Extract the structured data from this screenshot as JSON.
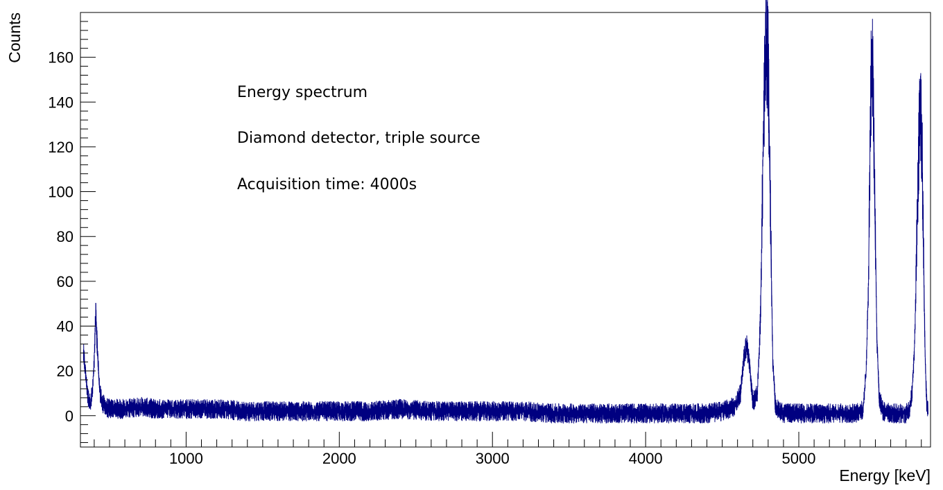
{
  "chart_data": {
    "type": "line",
    "xlabel": "Energy [keV]",
    "ylabel": "Counts",
    "xlim": [
      310,
      5860
    ],
    "ylim": [
      -14,
      180
    ],
    "x_ticks": [
      1000,
      2000,
      3000,
      4000,
      5000
    ],
    "y_ticks": [
      0,
      20,
      40,
      60,
      80,
      100,
      120,
      140,
      160
    ],
    "grid": false,
    "legend": "none",
    "annotations": [
      "Energy spectrum",
      "Diamond detector, triple source",
      "Acquisition time: 4000s"
    ],
    "series": [
      {
        "color": "#000080",
        "x": [
          330,
          345,
          360,
          375,
          390,
          400,
          410,
          420,
          435,
          450,
          470,
          500,
          600,
          700,
          800,
          900,
          1000,
          1200,
          1400,
          1600,
          1800,
          2000,
          2200,
          2400,
          2600,
          2800,
          3000,
          3200,
          3400,
          3600,
          3800,
          4000,
          4200,
          4400,
          4500,
          4580,
          4620,
          4640,
          4660,
          4680,
          4700,
          4730,
          4750,
          4765,
          4780,
          4790,
          4800,
          4815,
          4830,
          4845,
          4860,
          4880,
          4900,
          5000,
          5100,
          5200,
          5300,
          5380,
          5420,
          5440,
          5455,
          5465,
          5475,
          5485,
          5495,
          5510,
          5525,
          5550,
          5600,
          5650,
          5700,
          5720,
          5740,
          5755,
          5765,
          5775,
          5785,
          5795,
          5805,
          5815,
          5825,
          5835,
          5845
        ],
        "y": [
          28,
          18,
          8,
          5,
          12,
          25,
          45,
          30,
          12,
          6,
          4,
          3,
          3,
          4,
          3,
          3,
          3,
          3,
          2,
          2,
          2,
          2,
          2,
          3,
          2,
          2,
          2,
          2,
          1,
          1,
          1,
          1,
          1,
          1,
          2,
          4,
          10,
          25,
          32,
          22,
          6,
          10,
          45,
          110,
          160,
          168,
          155,
          90,
          25,
          6,
          3,
          2,
          1,
          1,
          1,
          1,
          1,
          1,
          3,
          20,
          60,
          120,
          158,
          150,
          100,
          35,
          8,
          2,
          1,
          1,
          1,
          2,
          10,
          30,
          60,
          95,
          125,
          138,
          120,
          70,
          25,
          6,
          1
        ]
      }
    ]
  }
}
